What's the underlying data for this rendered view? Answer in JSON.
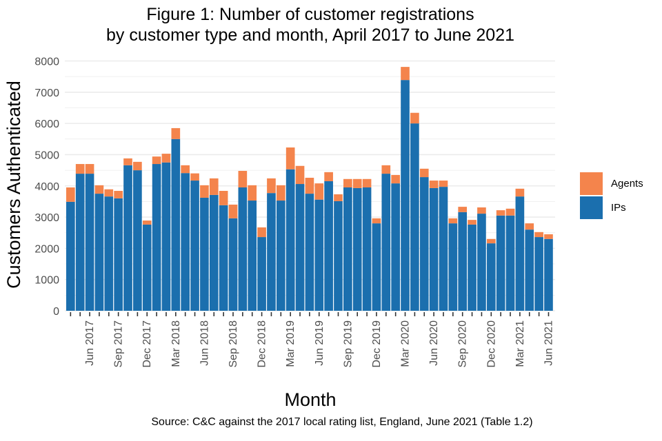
{
  "chart_data": {
    "type": "bar",
    "stacked": true,
    "title": "Figure 1: Number of customer registrations",
    "subtitle": "by customer type and month, April 2017 to June 2021",
    "xlabel": "Month",
    "ylabel": "Customers Authenticated",
    "caption": "Source: C&C against the 2017 local rating list, England, June 2021 (Table 1.2)",
    "ylim": [
      0,
      8000
    ],
    "yticks": [
      0,
      1000,
      2000,
      3000,
      4000,
      5000,
      6000,
      7000,
      8000
    ],
    "grid": true,
    "legend_position": "right",
    "categories": [
      "Apr 2017",
      "May 2017",
      "Jun 2017",
      "Jul 2017",
      "Aug 2017",
      "Sep 2017",
      "Oct 2017",
      "Nov 2017",
      "Dec 2017",
      "Jan 2018",
      "Feb 2018",
      "Mar 2018",
      "Apr 2018",
      "May 2018",
      "Jun 2018",
      "Jul 2018",
      "Aug 2018",
      "Sep 2018",
      "Oct 2018",
      "Nov 2018",
      "Dec 2018",
      "Jan 2019",
      "Feb 2019",
      "Mar 2019",
      "Apr 2019",
      "May 2019",
      "Jun 2019",
      "Jul 2019",
      "Aug 2019",
      "Sep 2019",
      "Oct 2019",
      "Nov 2019",
      "Dec 2019",
      "Jan 2020",
      "Feb 2020",
      "Mar 2020",
      "Apr 2020",
      "May 2020",
      "Jun 2020",
      "Jul 2020",
      "Aug 2020",
      "Sep 2020",
      "Oct 2020",
      "Nov 2020",
      "Dec 2020",
      "Jan 2021",
      "Feb 2021",
      "Mar 2021",
      "Apr 2021",
      "May 2021",
      "Jun 2021"
    ],
    "xtick_labels": [
      "Jun 2017",
      "Sep 2017",
      "Dec 2017",
      "Mar 2018",
      "Jun 2018",
      "Sep 2018",
      "Dec 2018",
      "Mar 2019",
      "Jun 2019",
      "Sep 2019",
      "Dec 2019",
      "Mar 2020",
      "Jun 2020",
      "Sep 2020",
      "Dec 2020",
      "Mar 2021",
      "Jun 2021"
    ],
    "series": [
      {
        "name": "IPs",
        "color": "#1b6fae",
        "values": [
          3490,
          4390,
          4390,
          3750,
          3660,
          3600,
          4660,
          4500,
          2760,
          4700,
          4750,
          5500,
          4410,
          4170,
          3620,
          3710,
          3380,
          2960,
          3950,
          3530,
          2360,
          3770,
          3530,
          4530,
          4060,
          3750,
          3560,
          4150,
          3510,
          3950,
          3930,
          3950,
          2800,
          4390,
          4080,
          7390,
          6000,
          4280,
          3930,
          3970,
          2800,
          3160,
          2760,
          3110,
          2160,
          3050,
          3050,
          3660,
          2600,
          2360,
          2300
        ]
      },
      {
        "name": "Agents",
        "color": "#f4844c",
        "values": [
          460,
          310,
          310,
          270,
          230,
          240,
          220,
          270,
          130,
          240,
          280,
          350,
          250,
          230,
          400,
          530,
          460,
          440,
          530,
          490,
          310,
          470,
          490,
          700,
          580,
          510,
          520,
          290,
          220,
          270,
          290,
          270,
          160,
          270,
          270,
          420,
          340,
          270,
          240,
          200,
          160,
          170,
          150,
          200,
          140,
          170,
          220,
          250,
          200,
          160,
          150
        ]
      }
    ]
  }
}
